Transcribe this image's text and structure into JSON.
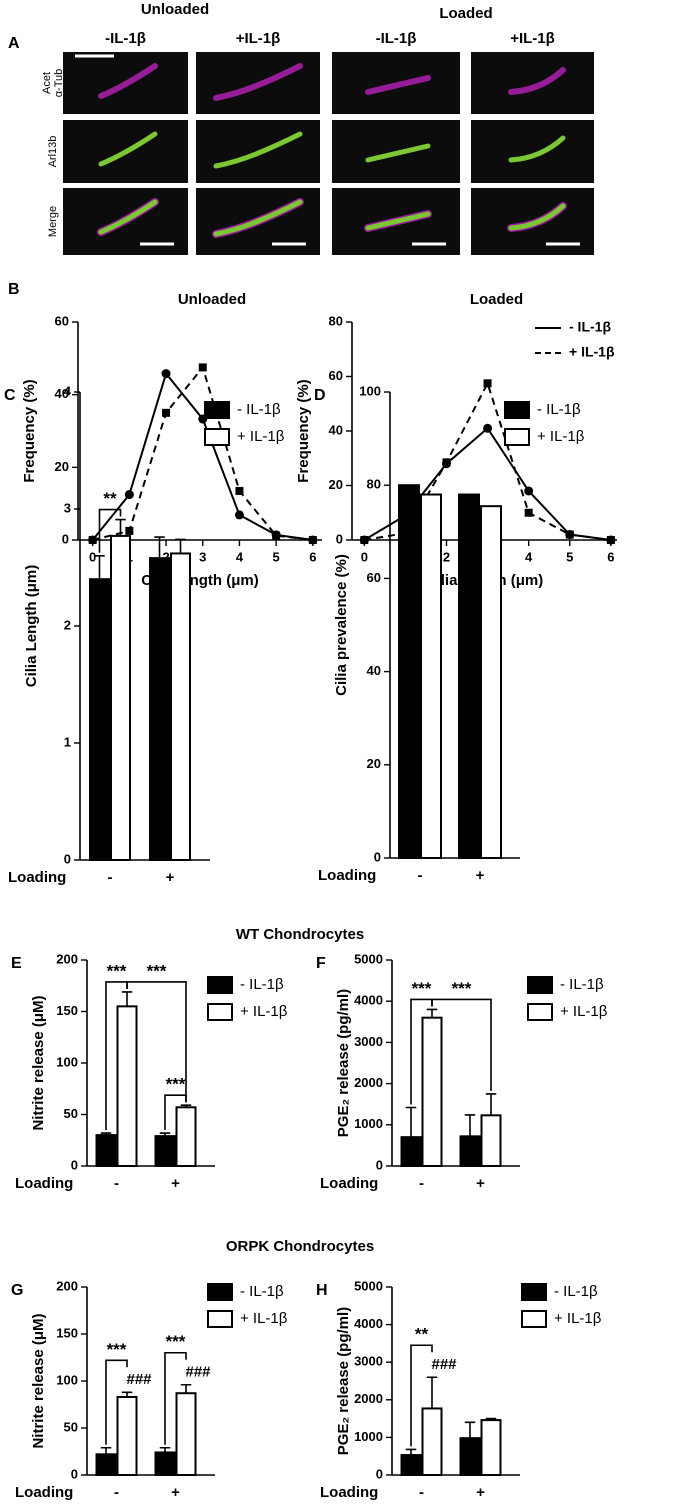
{
  "panel_a": {
    "label": "A",
    "groups": [
      "Unloaded",
      "Loaded"
    ],
    "columns": [
      "-IL-1β",
      "+IL-1β",
      "-IL-1β",
      "+IL-1β"
    ],
    "rows": [
      [
        "Acet",
        "α-Tub"
      ],
      [
        "Arl13b"
      ],
      [
        "Merge"
      ]
    ]
  },
  "chart_data": [
    {
      "type": "line",
      "panel": "B",
      "title": "Unloaded",
      "xlabel": "Cilia length (μm)",
      "ylabel": "Frequency (%)",
      "x": [
        0,
        1,
        2,
        3,
        4,
        5,
        6
      ],
      "xlim": [
        -0.4,
        6.25
      ],
      "xticks": [
        0,
        1,
        2,
        3,
        4,
        5,
        6
      ],
      "ylim": [
        0,
        60
      ],
      "yticks": [
        0,
        20,
        40,
        60
      ],
      "series": [
        {
          "color": "#000000",
          "dash": false,
          "marker": "circle",
          "values": [
            0,
            12.5,
            45.8,
            33.3,
            6.9,
            1.4,
            0
          ]
        },
        {
          "color": "#000000",
          "dash": true,
          "marker": "square",
          "values": [
            0,
            2.5,
            35,
            47.5,
            13.5,
            1.2,
            0
          ]
        }
      ]
    },
    {
      "type": "line",
      "title": "Loaded",
      "xlabel": "Cilia length (μm)",
      "ylabel": "Frequency (%)",
      "x": [
        0,
        1,
        2,
        3,
        4,
        5,
        6
      ],
      "xlim": [
        -0.3,
        6.15
      ],
      "xticks": [
        0,
        1,
        2,
        3,
        4,
        5,
        6
      ],
      "ylim": [
        0,
        80
      ],
      "yticks": [
        0,
        20,
        40,
        60,
        80
      ],
      "legend": "upper right",
      "series": [
        {
          "name": "- IL-1β",
          "color": "#000000",
          "dash": false,
          "marker": "circle",
          "values": [
            0,
            9,
            28,
            41,
            18,
            2,
            0
          ]
        },
        {
          "name": "+ IL-1β",
          "color": "#000000",
          "dash": true,
          "marker": "square",
          "values": [
            0,
            2.5,
            28.5,
            57.5,
            10,
            2,
            0
          ]
        }
      ]
    },
    {
      "type": "bar",
      "panel": "C",
      "ylabel": "Cilia Length (μm)",
      "xlabel": "Loading",
      "categories": [
        "-",
        "+"
      ],
      "ylim": [
        0,
        4
      ],
      "yticks": [
        0,
        1,
        2,
        3,
        4
      ],
      "legend": "upper right",
      "series": [
        {
          "name": "- IL-1β",
          "color": "#000000",
          "values": [
            2.4,
            2.58
          ],
          "errors": [
            0.2,
            0.18
          ]
        },
        {
          "name": "+ IL-1β",
          "color": "#ffffff",
          "values": [
            2.77,
            2.62
          ],
          "errors": [
            0.14,
            0.12
          ]
        }
      ],
      "annotations": [
        {
          "text": "**",
          "bars": [
            [
              0,
              0
            ],
            [
              0,
              1
            ]
          ]
        }
      ]
    },
    {
      "type": "bar",
      "panel": "D",
      "ylabel": "Cilia prevalence  (%)",
      "xlabel": "Loading",
      "categories": [
        "-",
        "+"
      ],
      "ylim": [
        0,
        100
      ],
      "yticks": [
        0,
        20,
        40,
        60,
        80,
        100
      ],
      "legend": "upper right",
      "series": [
        {
          "name": "- IL-1β",
          "color": "#000000",
          "values": [
            80,
            78
          ]
        },
        {
          "name": "+ IL-1β",
          "color": "#ffffff",
          "values": [
            78,
            75.5
          ]
        }
      ]
    },
    {
      "type": "bar",
      "panel": "E",
      "heading": "WT Chondrocytes",
      "ylabel": "Nitrite release (μM)",
      "xlabel": "Loading",
      "categories": [
        "-",
        "+"
      ],
      "ylim": [
        0,
        200
      ],
      "yticks": [
        0,
        50,
        100,
        150,
        200
      ],
      "legend": "upper right",
      "series": [
        {
          "name": "- IL-1β",
          "color": "#000000",
          "values": [
            30,
            29
          ],
          "errors": [
            2,
            3
          ]
        },
        {
          "name": "+ IL-1β",
          "color": "#ffffff",
          "values": [
            155,
            57
          ],
          "errors": [
            14,
            2
          ]
        }
      ],
      "annotations": [
        {
          "text": "***",
          "bars": [
            [
              0,
              0
            ],
            [
              0,
              1
            ]
          ]
        },
        {
          "text": "***",
          "bars": [
            [
              0,
              1
            ],
            [
              1,
              1
            ]
          ]
        },
        {
          "text": "***",
          "bars": [
            [
              1,
              0
            ],
            [
              1,
              1
            ]
          ]
        }
      ]
    },
    {
      "type": "bar",
      "panel": "F",
      "ylabel": "PGE₂ release (pg/ml)",
      "xlabel": "Loading",
      "categories": [
        "-",
        "+"
      ],
      "ylim": [
        0,
        5000
      ],
      "yticks": [
        0,
        1000,
        2000,
        3000,
        4000,
        5000
      ],
      "legend": "upper right",
      "series": [
        {
          "name": "- IL-1β",
          "color": "#000000",
          "values": [
            700,
            720
          ],
          "errors": [
            720,
            520
          ]
        },
        {
          "name": "+ IL-1β",
          "color": "#ffffff",
          "values": [
            3600,
            1230
          ],
          "errors": [
            200,
            520
          ]
        }
      ],
      "annotations": [
        {
          "text": "***",
          "bars": [
            [
              0,
              0
            ],
            [
              0,
              1
            ]
          ]
        },
        {
          "text": "***",
          "bars": [
            [
              0,
              1
            ],
            [
              1,
              1
            ]
          ]
        }
      ]
    },
    {
      "type": "bar",
      "panel": "G",
      "heading": "ORPK Chondrocytes",
      "ylabel": "Nitrite release (μM)",
      "xlabel": "Loading",
      "categories": [
        "-",
        "+"
      ],
      "ylim": [
        0,
        200
      ],
      "yticks": [
        0,
        50,
        100,
        150,
        200
      ],
      "legend": "upper right",
      "series": [
        {
          "name": "- IL-1β",
          "color": "#000000",
          "values": [
            22,
            24
          ],
          "errors": [
            7,
            5
          ]
        },
        {
          "name": "+ IL-1β",
          "color": "#ffffff",
          "values": [
            83,
            87
          ],
          "errors": [
            5,
            9
          ]
        }
      ],
      "annotations": [
        {
          "text": "###",
          "bars": [
            [
              0,
              1
            ]
          ]
        },
        {
          "text": "###",
          "bars": [
            [
              1,
              1
            ]
          ]
        },
        {
          "text": "***",
          "bars": [
            [
              0,
              0
            ],
            [
              0,
              1
            ]
          ]
        },
        {
          "text": "***",
          "bars": [
            [
              1,
              0
            ],
            [
              1,
              1
            ]
          ]
        }
      ]
    },
    {
      "type": "bar",
      "panel": "H",
      "ylabel": "PGE₂ release (pg/ml)",
      "xlabel": "Loading",
      "categories": [
        "-",
        "+"
      ],
      "ylim": [
        0,
        5000
      ],
      "yticks": [
        0,
        1000,
        2000,
        3000,
        4000,
        5000
      ],
      "legend": "upper right",
      "series": [
        {
          "name": "- IL-1β",
          "color": "#000000",
          "values": [
            530,
            980
          ],
          "errors": [
            150,
            420
          ]
        },
        {
          "name": "+ IL-1β",
          "color": "#ffffff",
          "values": [
            1770,
            1460
          ],
          "errors": [
            830,
            40
          ]
        }
      ],
      "annotations": [
        {
          "text": "###",
          "bars": [
            [
              0,
              1
            ]
          ]
        },
        {
          "text": "**",
          "bars": [
            [
              0,
              0
            ],
            [
              0,
              1
            ]
          ]
        }
      ]
    }
  ]
}
